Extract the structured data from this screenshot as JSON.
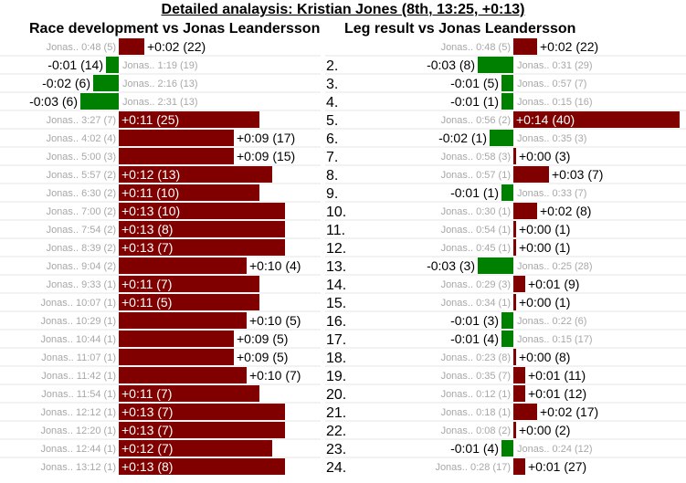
{
  "title": "Detailed analaysis: Kristian Jones (8th, 13:25, +0:13)",
  "colors": {
    "behind": "#800000",
    "ahead": "#008000",
    "row_line": "#e4e4e4",
    "ref_text": "#a8a8a8"
  },
  "chart_data": [
    {
      "type": "bar",
      "title": "Race development vs Jonas Leandersson",
      "unit": "seconds",
      "rows": [
        {
          "ref": "Jonas.. 0:48 (5)",
          "diff": 2,
          "label": "+0:02 (22)"
        },
        {
          "ref": "Jonas.. 1:19 (19)",
          "diff": -1,
          "label": "-0:01 (14)"
        },
        {
          "ref": "Jonas.. 2:16 (13)",
          "diff": -2,
          "label": "-0:02 (6)"
        },
        {
          "ref": "Jonas.. 2:31 (13)",
          "diff": -3,
          "label": "-0:03 (6)"
        },
        {
          "ref": "Jonas.. 3:27 (7)",
          "diff": 11,
          "label": "+0:11 (25)"
        },
        {
          "ref": "Jonas.. 4:02 (4)",
          "diff": 9,
          "label": "+0:09 (17)"
        },
        {
          "ref": "Jonas.. 5:00 (3)",
          "diff": 9,
          "label": "+0:09 (15)"
        },
        {
          "ref": "Jonas.. 5:57 (2)",
          "diff": 12,
          "label": "+0:12 (13)"
        },
        {
          "ref": "Jonas.. 6:30 (2)",
          "diff": 11,
          "label": "+0:11 (10)"
        },
        {
          "ref": "Jonas.. 7:00 (2)",
          "diff": 13,
          "label": "+0:13 (10)"
        },
        {
          "ref": "Jonas.. 7:54 (2)",
          "diff": 13,
          "label": "+0:13 (8)"
        },
        {
          "ref": "Jonas.. 8:39 (2)",
          "diff": 13,
          "label": "+0:13 (7)"
        },
        {
          "ref": "Jonas.. 9:04 (2)",
          "diff": 10,
          "label": "+0:10 (4)"
        },
        {
          "ref": "Jonas.. 9:33 (1)",
          "diff": 11,
          "label": "+0:11 (7)"
        },
        {
          "ref": "Jonas.. 10:07 (1)",
          "diff": 11,
          "label": "+0:11 (5)"
        },
        {
          "ref": "Jonas.. 10:29 (1)",
          "diff": 10,
          "label": "+0:10 (5)"
        },
        {
          "ref": "Jonas.. 10:44 (1)",
          "diff": 9,
          "label": "+0:09 (5)"
        },
        {
          "ref": "Jonas.. 11:07 (1)",
          "diff": 9,
          "label": "+0:09 (5)"
        },
        {
          "ref": "Jonas.. 11:42 (1)",
          "diff": 10,
          "label": "+0:10 (7)"
        },
        {
          "ref": "Jonas.. 11:54 (1)",
          "diff": 11,
          "label": "+0:11 (7)"
        },
        {
          "ref": "Jonas.. 12:12 (1)",
          "diff": 13,
          "label": "+0:13 (7)"
        },
        {
          "ref": "Jonas.. 12:20 (1)",
          "diff": 13,
          "label": "+0:13 (7)"
        },
        {
          "ref": "Jonas.. 12:44 (1)",
          "diff": 12,
          "label": "+0:12 (7)"
        },
        {
          "ref": "Jonas.. 13:12 (1)",
          "diff": 13,
          "label": "+0:13 (8)"
        }
      ]
    },
    {
      "type": "bar",
      "title": "Leg result vs Jonas Leandersson",
      "unit": "seconds",
      "rows": [
        {
          "leg": "",
          "ref": "Jonas.. 0:48 (5)",
          "diff": 2,
          "label": "+0:02 (22)"
        },
        {
          "leg": "2.",
          "ref": "Jonas.. 0:31 (29)",
          "diff": -3,
          "label": "-0:03 (8)"
        },
        {
          "leg": "3.",
          "ref": "Jonas.. 0:57 (7)",
          "diff": -1,
          "label": "-0:01 (5)"
        },
        {
          "leg": "4.",
          "ref": "Jonas.. 0:15 (16)",
          "diff": -1,
          "label": "-0:01 (1)"
        },
        {
          "leg": "5.",
          "ref": "Jonas.. 0:56 (2)",
          "diff": 14,
          "label": "+0:14 (40)"
        },
        {
          "leg": "6.",
          "ref": "Jonas.. 0:35 (3)",
          "diff": -2,
          "label": "-0:02 (1)"
        },
        {
          "leg": "7.",
          "ref": "Jonas.. 0:58 (3)",
          "diff": 0,
          "label": "+0:00 (3)"
        },
        {
          "leg": "8.",
          "ref": "Jonas.. 0:57 (1)",
          "diff": 3,
          "label": "+0:03 (7)"
        },
        {
          "leg": "9.",
          "ref": "Jonas.. 0:33 (7)",
          "diff": -1,
          "label": "-0:01 (1)"
        },
        {
          "leg": "10.",
          "ref": "Jonas.. 0:30 (1)",
          "diff": 2,
          "label": "+0:02 (8)"
        },
        {
          "leg": "11.",
          "ref": "Jonas.. 0:54 (1)",
          "diff": 0,
          "label": "+0:00 (1)"
        },
        {
          "leg": "12.",
          "ref": "Jonas.. 0:45 (1)",
          "diff": 0,
          "label": "+0:00 (1)"
        },
        {
          "leg": "13.",
          "ref": "Jonas.. 0:25 (28)",
          "diff": -3,
          "label": "-0:03 (3)"
        },
        {
          "leg": "14.",
          "ref": "Jonas.. 0:29 (3)",
          "diff": 1,
          "label": "+0:01 (9)"
        },
        {
          "leg": "15.",
          "ref": "Jonas.. 0:34 (1)",
          "diff": 0,
          "label": "+0:00 (1)"
        },
        {
          "leg": "16.",
          "ref": "Jonas.. 0:22 (6)",
          "diff": -1,
          "label": "-0:01 (3)"
        },
        {
          "leg": "17.",
          "ref": "Jonas.. 0:15 (17)",
          "diff": -1,
          "label": "-0:01 (4)"
        },
        {
          "leg": "18.",
          "ref": "Jonas.. 0:23 (8)",
          "diff": 0,
          "label": "+0:00 (8)"
        },
        {
          "leg": "19.",
          "ref": "Jonas.. 0:35 (7)",
          "diff": 1,
          "label": "+0:01 (11)"
        },
        {
          "leg": "20.",
          "ref": "Jonas.. 0:12 (1)",
          "diff": 1,
          "label": "+0:01 (12)"
        },
        {
          "leg": "21.",
          "ref": "Jonas.. 0:18 (1)",
          "diff": 2,
          "label": "+0:02 (17)"
        },
        {
          "leg": "22.",
          "ref": "Jonas.. 0:08 (2)",
          "diff": 0,
          "label": "+0:00 (2)"
        },
        {
          "leg": "23.",
          "ref": "Jonas.. 0:24 (12)",
          "diff": -1,
          "label": "-0:01 (4)"
        },
        {
          "leg": "24.",
          "ref": "Jonas.. 0:28 (17)",
          "diff": 1,
          "label": "+0:01 (27)"
        }
      ]
    }
  ]
}
